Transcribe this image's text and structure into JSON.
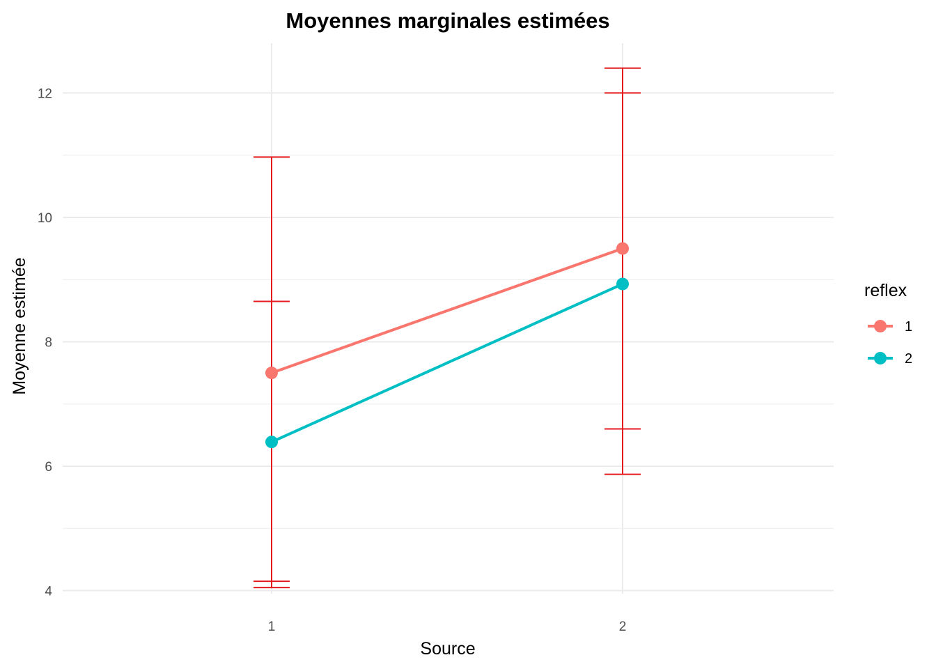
{
  "chart_data": {
    "type": "line",
    "title": "Moyennes marginales estimées",
    "xlabel": "Source",
    "ylabel": "Moyenne estimée",
    "categories": [
      "1",
      "2"
    ],
    "yticks": [
      4,
      6,
      8,
      10,
      12
    ],
    "ylim": [
      3.95,
      12.8
    ],
    "grid": true,
    "legend": {
      "title": "reflex",
      "position": "right"
    },
    "series": [
      {
        "name": "1",
        "color": "#F8766D",
        "values": [
          7.5,
          9.5
        ],
        "error_low": [
          4.15,
          6.6
        ],
        "error_high": [
          8.65,
          12.0
        ]
      },
      {
        "name": "2",
        "color": "#00BFC4",
        "values": [
          6.39,
          8.93
        ],
        "error_low": [
          4.05,
          5.87
        ],
        "error_high": [
          10.97,
          12.4
        ]
      }
    ],
    "errorbar_color": "#E41A1C"
  }
}
